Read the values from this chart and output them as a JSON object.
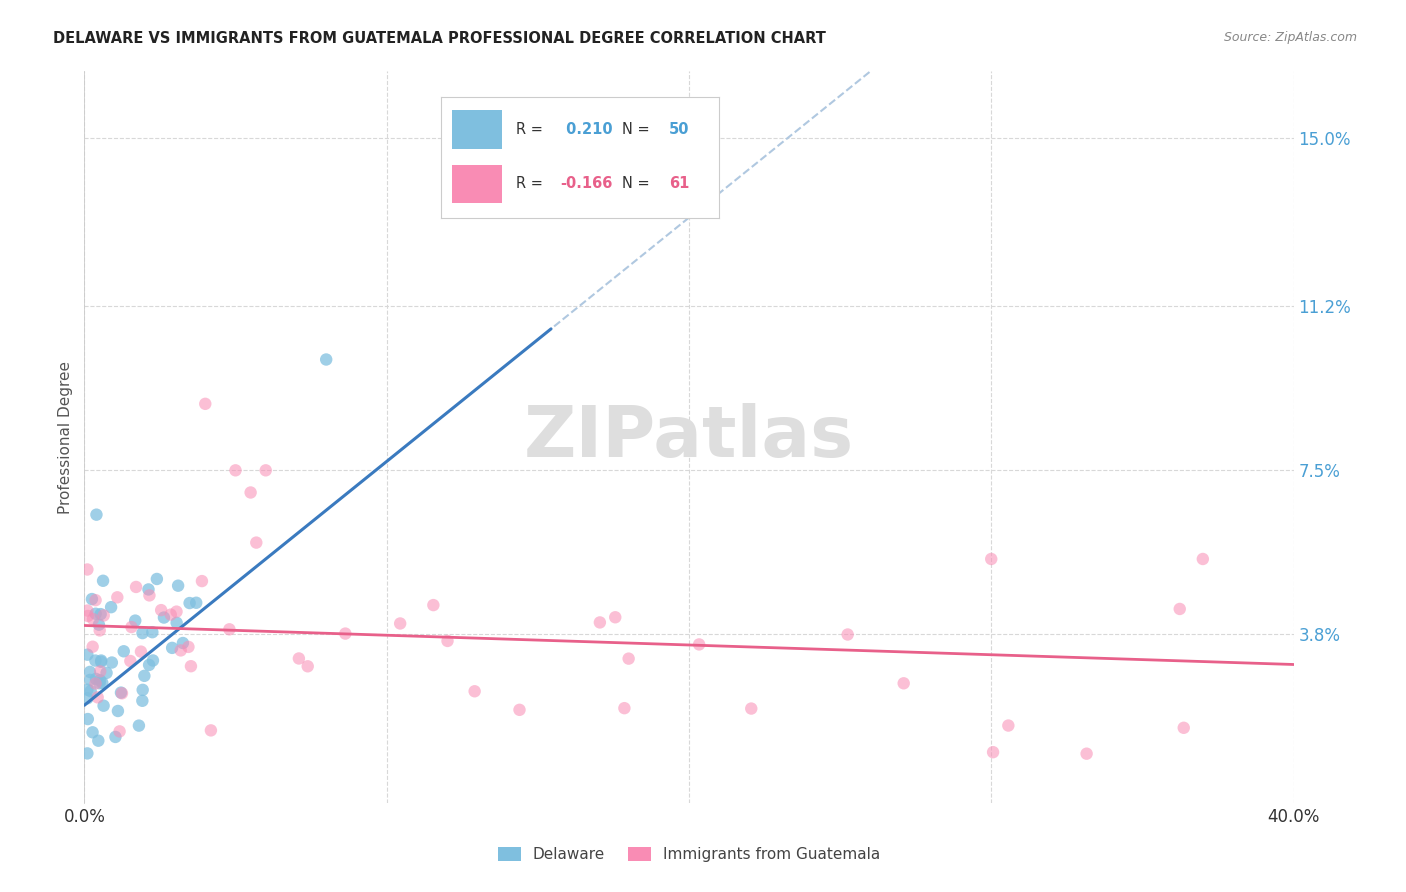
{
  "title": "DELAWARE VS IMMIGRANTS FROM GUATEMALA PROFESSIONAL DEGREE CORRELATION CHART",
  "source": "Source: ZipAtlas.com",
  "ylabel": "Professional Degree",
  "ytick_labels": [
    "3.8%",
    "7.5%",
    "11.2%",
    "15.0%"
  ],
  "ytick_values": [
    0.038,
    0.075,
    0.112,
    0.15
  ],
  "xlim": [
    0.0,
    0.4
  ],
  "ylim": [
    0.0,
    0.165
  ],
  "color_delaware": "#7fbfdf",
  "color_guatemala": "#f98cb4",
  "color_trendline_delaware": "#3a7abf",
  "color_trendline_guatemala": "#e8608a",
  "color_trendline_dashed": "#b0c8e0",
  "watermark": "ZIPatlas",
  "legend_r1_r": "R = ",
  "legend_r1_val": " 0.210",
  "legend_r1_n": "N = ",
  "legend_r1_nval": "50",
  "legend_r2_r": "R = ",
  "legend_r2_val": "-0.166",
  "legend_r2_n": "N = ",
  "legend_r2_nval": "61"
}
